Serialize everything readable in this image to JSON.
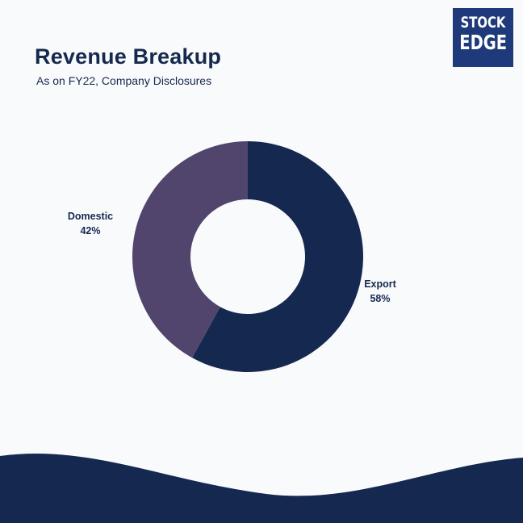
{
  "header": {
    "title": "Revenue Breakup",
    "subtitle": "As on FY22, Company Disclosures"
  },
  "logo": {
    "line1": "STOCK",
    "line2": "EDGE",
    "background": "#1f3a7a"
  },
  "colors": {
    "export": "#152850",
    "domestic": "#51446d",
    "footer_wave": "#152850"
  },
  "chart_data": {
    "type": "pie",
    "donut": true,
    "title": "Revenue Breakup",
    "subtitle": "As on FY22, Company Disclosures",
    "categories": [
      "Export",
      "Domestic"
    ],
    "values": [
      58,
      42
    ],
    "labels": [
      {
        "name": "Export",
        "value_label": "58%"
      },
      {
        "name": "Domestic",
        "value_label": "42%"
      }
    ],
    "legend": "none"
  }
}
